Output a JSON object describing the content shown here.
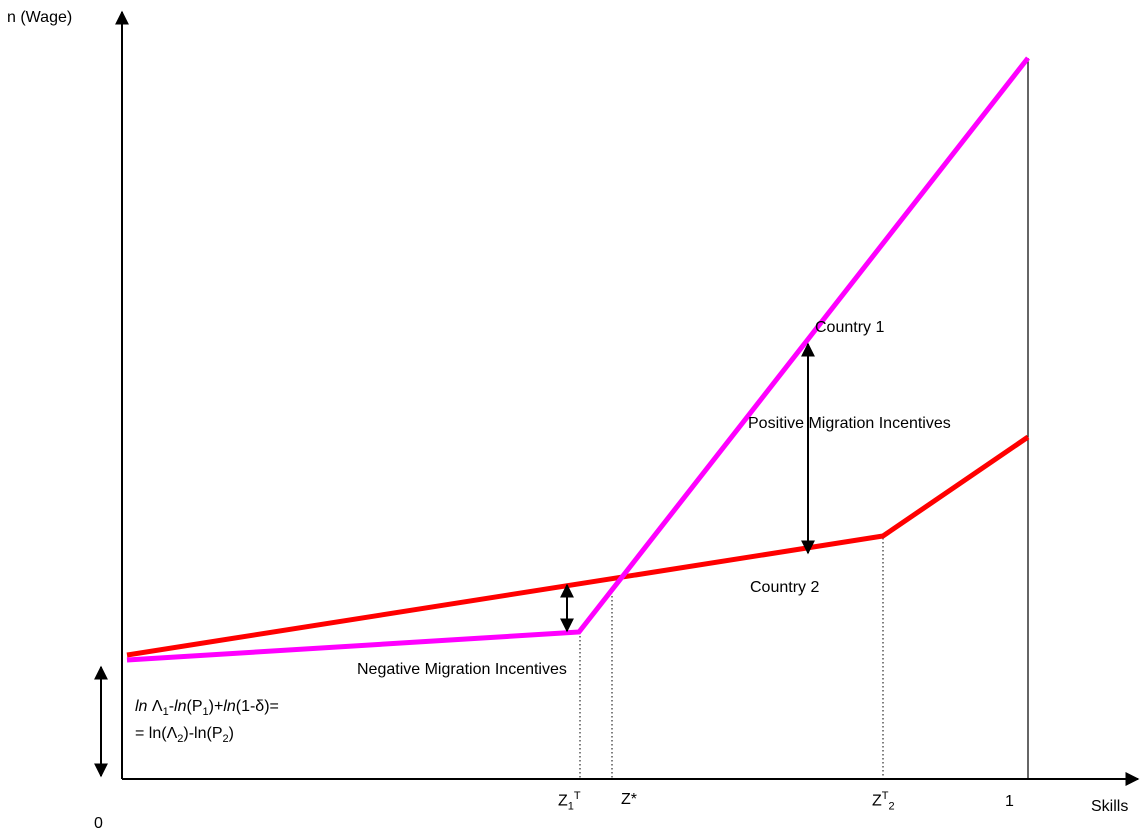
{
  "axes": {
    "y_label": "n (Wage)",
    "x_label": "Skills",
    "origin_label": "0"
  },
  "curves": {
    "country1": {
      "label": "Country 1",
      "color": "#ff00ff"
    },
    "country2": {
      "label": "Country 2",
      "color": "#ff0000"
    }
  },
  "annotations": {
    "positive": "Positive Migration Incentives",
    "negative": "Negative Migration Incentives"
  },
  "equation": {
    "ln1": "ln",
    "lambda1": " Λ",
    "sub1": "1",
    "minus_ln": "-",
    "ln2": "ln",
    "p1_open": "(P",
    "sub_p1": "1",
    "p1_close": ")+",
    "ln3": "ln",
    "delta_part": "(1-δ)=",
    "line2_start": "= ln(Λ",
    "sub_l2": "2",
    "line2_mid": ")-ln(P",
    "sub_p2": "2",
    "line2_end": ")"
  },
  "ticks": {
    "z1t_main": "Z",
    "z1t_sub": "1",
    "z1t_sup": "T",
    "zstar": "Z*",
    "z2t_main": "Z",
    "z2t_sup": "T",
    "z2t_sub": "2",
    "one": "1"
  }
}
